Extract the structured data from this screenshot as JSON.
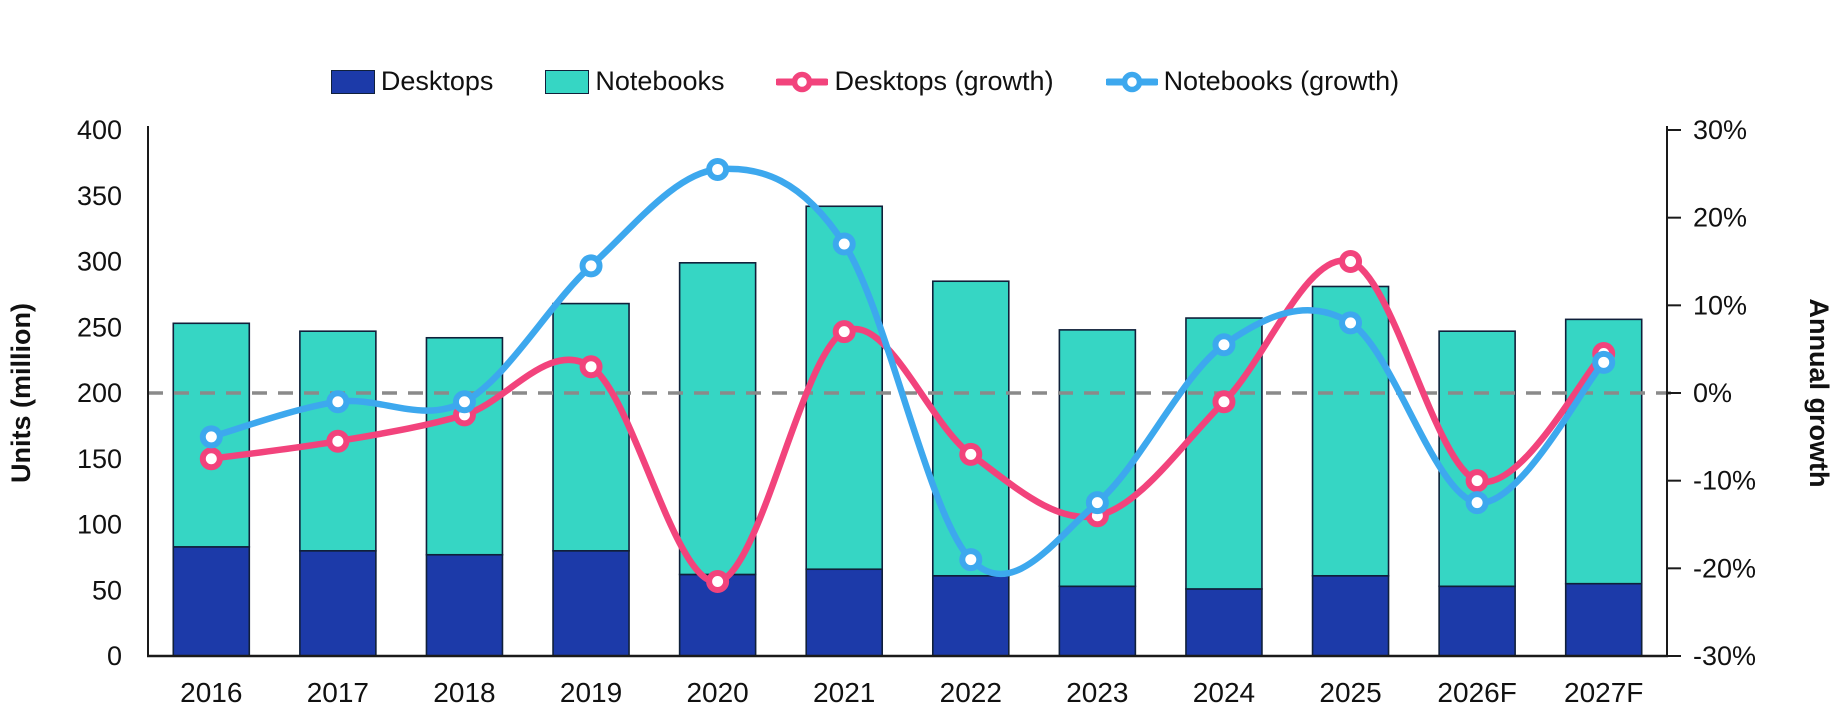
{
  "chart_data": {
    "type": "combo-stacked-bar-line",
    "title": "",
    "categories": [
      "2016",
      "2017",
      "2018",
      "2019",
      "2020",
      "2021",
      "2022",
      "2023",
      "2024",
      "2025",
      "2026F",
      "2027F"
    ],
    "bar_series": [
      {
        "name": "Desktops",
        "color": "#1C3AA9",
        "axis": "left",
        "values": [
          83,
          80,
          77,
          80,
          62,
          66,
          61,
          53,
          51,
          61,
          53,
          55
        ]
      },
      {
        "name": "Notebooks",
        "color": "#36D6C4",
        "axis": "left",
        "values": [
          170,
          167,
          165,
          188,
          237,
          276,
          224,
          195,
          206,
          220,
          194,
          201
        ]
      }
    ],
    "line_series": [
      {
        "name": "Desktops (growth)",
        "color": "#F2437C",
        "axis": "right",
        "values": [
          -7.5,
          -5.5,
          -2.5,
          3,
          -21.5,
          7,
          -7,
          -14,
          -1,
          15,
          -10,
          4.5
        ]
      },
      {
        "name": "Notebooks (growth)",
        "color": "#3DA8EE",
        "axis": "right",
        "values": [
          -5,
          -1,
          -1,
          14.5,
          25.5,
          17,
          -19,
          -12.5,
          5.5,
          8,
          -12.5,
          3.5
        ]
      }
    ],
    "left_axis": {
      "label": "Units (million)",
      "min": 0,
      "max": 400,
      "step": 50,
      "ticks": [
        "400",
        "350",
        "300",
        "250",
        "200",
        "150",
        "100",
        "50",
        "0"
      ]
    },
    "right_axis": {
      "label": "Annual growth",
      "min": -30,
      "max": 30,
      "step": 10,
      "ticks": [
        "30%",
        "20%",
        "10%",
        "0%",
        "-10%",
        "-20%",
        "-30%"
      ]
    },
    "zero_line": {
      "at_right_axis_value": 0,
      "style": "dashed",
      "color": "#8a8a8a"
    },
    "legend_position": "top",
    "grid": "off",
    "marker": {
      "fill": "#ffffff"
    },
    "bar_outline_color": "#10203a",
    "axis_line_color": "#1a1a1a"
  }
}
